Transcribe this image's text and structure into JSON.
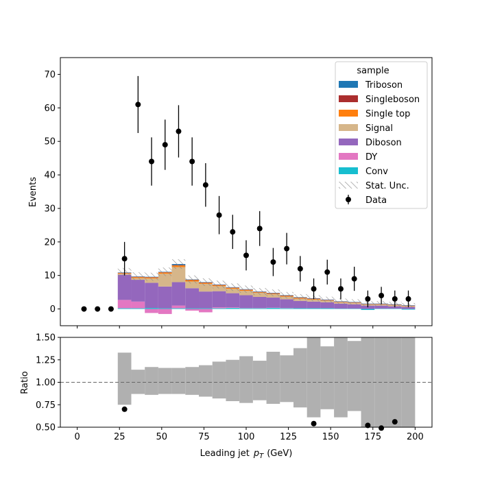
{
  "chart_data": {
    "type": "bar",
    "stacked": true,
    "xlabel_main": "Leading jet",
    "xlabel_sym": "p",
    "xlabel_sub": "T",
    "xlabel_unit": "(GeV)",
    "ylabel_top": "Events",
    "ylabel_bottom": "Ratio",
    "xlim": [
      -10,
      210
    ],
    "ylim_top": [
      -5,
      75
    ],
    "ylim_bottom": [
      0.5,
      1.5
    ],
    "xticks": [
      0,
      25,
      50,
      75,
      100,
      125,
      150,
      175,
      200
    ],
    "yticks_top": [
      0,
      10,
      20,
      30,
      40,
      50,
      60,
      70
    ],
    "yticks_bottom": [
      "0.50",
      "0.75",
      "1.00",
      "1.25",
      "1.50"
    ],
    "legend_title": "sample",
    "legend_position": "top-right",
    "bin_edges": [
      0,
      8,
      16,
      24,
      32,
      40,
      48,
      56,
      64,
      72,
      80,
      88,
      96,
      104,
      112,
      120,
      128,
      136,
      144,
      152,
      160,
      168,
      176,
      184,
      192,
      200
    ],
    "series": [
      {
        "name": "Conv",
        "color": "#17becf",
        "values": [
          0,
          0,
          0,
          0.2,
          0.2,
          0.3,
          0.2,
          0.2,
          0.2,
          0.2,
          0.2,
          0.3,
          0.2,
          0.2,
          0.3,
          0.2,
          0.2,
          0.2,
          0.2,
          0.1,
          0.1,
          -0.3,
          0.1,
          0.1,
          -0.2
        ]
      },
      {
        "name": "DY",
        "color": "#e377c2",
        "values": [
          0,
          0,
          0,
          2.5,
          2.0,
          -1.2,
          -1.5,
          0.8,
          -0.5,
          -1.0,
          0.3,
          0.2,
          0.1,
          0.1,
          0.1,
          0.1,
          0.0,
          0.0,
          0.0,
          0.0,
          0.0,
          0.0,
          0.0,
          0.0,
          0.0
        ]
      },
      {
        "name": "Diboson",
        "color": "#9467bd",
        "values": [
          0,
          0,
          0,
          7.5,
          6.5,
          7.5,
          6.5,
          7.0,
          6.0,
          5.0,
          4.8,
          4.2,
          3.8,
          3.3,
          3.0,
          2.6,
          2.2,
          2.0,
          1.8,
          1.5,
          1.3,
          1.0,
          0.9,
          0.7,
          0.6
        ]
      },
      {
        "name": "Signal",
        "color": "#d6b68a",
        "values": [
          0,
          0,
          0,
          0.3,
          0.5,
          1.3,
          3.8,
          4.5,
          2.0,
          2.3,
          1.5,
          1.3,
          1.3,
          1.2,
          1.0,
          0.8,
          0.7,
          0.6,
          0.5,
          0.4,
          0.4,
          0.3,
          0.3,
          0.3,
          0.2
        ]
      },
      {
        "name": "Single top",
        "color": "#ff7f0e",
        "values": [
          0,
          0,
          0,
          0.2,
          0.3,
          0.3,
          0.4,
          0.5,
          0.4,
          0.3,
          0.3,
          0.3,
          0.3,
          0.2,
          0.2,
          0.2,
          0.2,
          0.2,
          0.1,
          0.1,
          0.1,
          0.1,
          0.1,
          0.1,
          0.1
        ]
      },
      {
        "name": "Singleboson",
        "color": "#ab2e2e",
        "values": [
          0,
          0,
          0,
          0.1,
          0.1,
          0.1,
          0.1,
          0.1,
          0.1,
          0.1,
          0.1,
          0.1,
          0.1,
          0.1,
          0.1,
          0.1,
          0.1,
          0.1,
          0.1,
          0.1,
          0.1,
          0.1,
          0.1,
          0.1,
          0.1
        ]
      },
      {
        "name": "Triboson",
        "color": "#1f77b4",
        "values": [
          0,
          0,
          0,
          0.1,
          0.1,
          0.1,
          0.1,
          0.3,
          0.1,
          0.1,
          0.1,
          0.1,
          0.1,
          0.1,
          0.1,
          0.1,
          0.1,
          0.1,
          0.1,
          0.1,
          0.1,
          0.1,
          0.1,
          0.1,
          0.1
        ]
      }
    ],
    "stat_unc_label": "Stat. Unc.",
    "data": {
      "name": "Data",
      "x": [
        4,
        12,
        20,
        28,
        36,
        44,
        52,
        60,
        68,
        76,
        84,
        92,
        100,
        108,
        116,
        124,
        132,
        140,
        148,
        156,
        164,
        172,
        180,
        188,
        196
      ],
      "y": [
        0,
        0,
        0,
        15,
        61,
        44,
        49,
        53,
        44,
        37,
        28,
        23,
        16,
        24,
        14,
        18,
        12,
        6,
        11,
        6,
        9,
        3,
        4,
        3,
        3
      ],
      "yerr": [
        0,
        0,
        0,
        5,
        8.5,
        7.2,
        7.5,
        7.8,
        7.2,
        6.5,
        5.7,
        5.1,
        4.5,
        5.2,
        4.2,
        4.7,
        3.8,
        3.1,
        3.7,
        3.1,
        3.6,
        2.5,
        2.6,
        2.5,
        2.5
      ]
    },
    "ratio": {
      "band_lo": [
        null,
        null,
        null,
        0.75,
        0.87,
        0.86,
        0.87,
        0.87,
        0.86,
        0.84,
        0.82,
        0.79,
        0.77,
        0.8,
        0.76,
        0.78,
        0.72,
        0.61,
        0.7,
        0.61,
        0.68,
        0.5,
        0.5,
        0.5,
        0.5
      ],
      "band_hi": [
        null,
        null,
        null,
        1.33,
        1.14,
        1.17,
        1.16,
        1.16,
        1.17,
        1.19,
        1.23,
        1.25,
        1.29,
        1.24,
        1.34,
        1.3,
        1.38,
        1.5,
        1.4,
        1.5,
        1.46,
        1.5,
        1.5,
        1.5,
        1.5
      ],
      "points_x": [
        28,
        140,
        172,
        180,
        188
      ],
      "points_y": [
        0.7,
        0.54,
        0.52,
        0.49,
        0.56
      ]
    }
  }
}
